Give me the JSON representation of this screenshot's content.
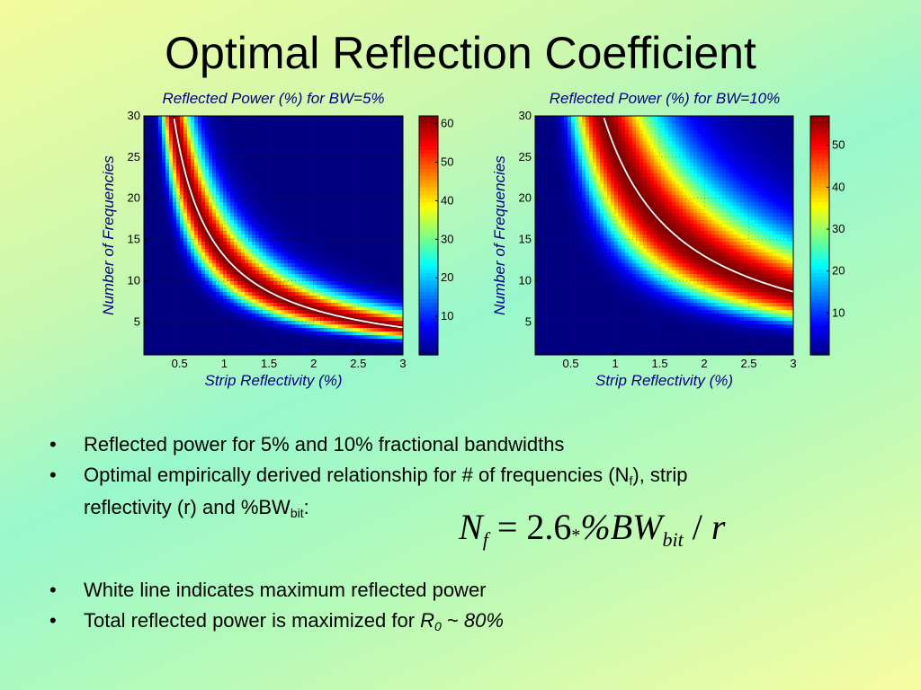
{
  "slide": {
    "title": "Optimal Reflection Coefficient"
  },
  "chart_data": [
    {
      "type": "heatmap",
      "title": "Reflected Power (%) for BW=5%",
      "xlabel": "Strip Reflectivity (%)",
      "ylabel": "Number of Frequencies",
      "xlim": [
        0.1,
        3
      ],
      "ylim": [
        1,
        30
      ],
      "x_ticks": [
        "0.5",
        "1",
        "1.5",
        "2",
        "2.5",
        "3"
      ],
      "y_ticks": [
        "5",
        "10",
        "15",
        "20",
        "25",
        "30"
      ],
      "colorbar": {
        "range": [
          0,
          62
        ],
        "ticks": [
          "10",
          "20",
          "30",
          "40",
          "50",
          "60"
        ]
      },
      "colormap": "jet",
      "max_line_color": "#ffffff",
      "peak_reflected_power_pct": 62,
      "bandwidth_pct": 5
    },
    {
      "type": "heatmap",
      "title": "Reflected Power (%) for BW=10%",
      "xlabel": "Strip Reflectivity (%)",
      "ylabel": "Number of Frequencies",
      "xlim": [
        0.1,
        3
      ],
      "ylim": [
        1,
        30
      ],
      "x_ticks": [
        "0.5",
        "1",
        "1.5",
        "2",
        "2.5",
        "3"
      ],
      "y_ticks": [
        "5",
        "10",
        "15",
        "20",
        "25",
        "30"
      ],
      "colorbar": {
        "range": [
          0,
          57
        ],
        "ticks": [
          "10",
          "20",
          "30",
          "40",
          "50"
        ]
      },
      "colormap": "jet",
      "max_line_color": "#ffffff",
      "peak_reflected_power_pct": 57,
      "bandwidth_pct": 10
    }
  ],
  "bullets": {
    "b1": "Reflected power for 5% and 10% fractional bandwidths",
    "b2_pre": "Optimal empirically derived relationship for # of frequencies (N",
    "b2_sub": "f",
    "b2_post": "), strip",
    "b2_line2_pre": "reflectivity (r) and %BW",
    "b2_line2_sub": "bit",
    "b2_line2_post": ":",
    "b3": "White line indicates maximum reflected power",
    "b4_pre": "Total reflected power is maximized for ",
    "b4_r": "R",
    "b4_r_sub": "0",
    "b4_post": " ~ ",
    "b4_val": "80%"
  },
  "formula": {
    "lhs": "N",
    "lhs_sub": "f",
    "eq": " = 2.6",
    "star": "*",
    "pct": "%",
    "bw": "BW",
    "bw_sub": "bit",
    "slash": " / ",
    "r": "r"
  },
  "bullet_char": "•"
}
